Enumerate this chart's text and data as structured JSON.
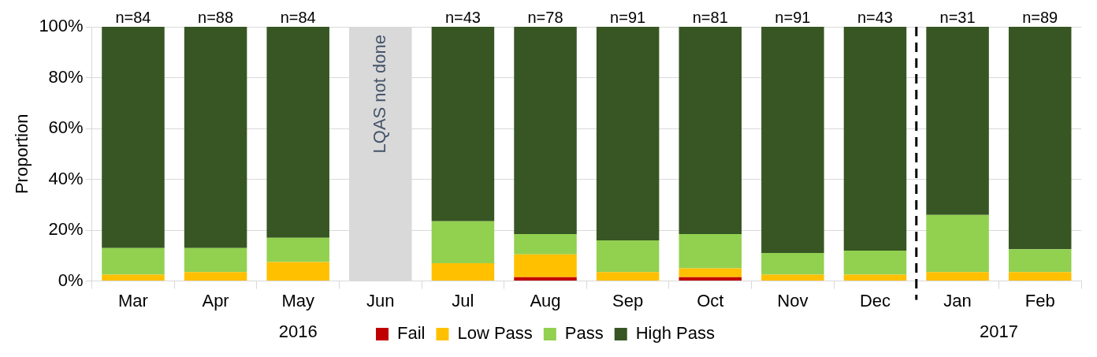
{
  "chart_data": {
    "type": "bar",
    "stacked": true,
    "ylabel": "Proportion",
    "categories": [
      "Mar",
      "Apr",
      "May",
      "Jun",
      "Jul",
      "Aug",
      "Sep",
      "Oct",
      "Nov",
      "Dec",
      "Jan",
      "Feb"
    ],
    "series": [
      {
        "name": "Fail",
        "color": "#c00000",
        "values": [
          0,
          0,
          0,
          null,
          0,
          1.5,
          0,
          1.5,
          0,
          0,
          0,
          0
        ]
      },
      {
        "name": "Low Pass",
        "color": "#ffc000",
        "values": [
          2.5,
          3.5,
          7.5,
          null,
          7,
          9,
          3.5,
          3.5,
          2.5,
          2.5,
          3.5,
          3.5
        ]
      },
      {
        "name": "Pass",
        "color": "#92d050",
        "values": [
          10.5,
          9.5,
          9.5,
          null,
          16.5,
          8,
          12.5,
          13.5,
          8.5,
          9.5,
          22.5,
          9
        ]
      },
      {
        "name": "High Pass",
        "color": "#375623",
        "values": [
          87,
          87,
          83,
          null,
          76.5,
          81.5,
          84,
          81.5,
          89,
          88,
          74,
          87.5
        ]
      }
    ],
    "ylim": [
      0,
      100
    ],
    "yticks": [
      {
        "value": 0,
        "label": "0%"
      },
      {
        "value": 20,
        "label": "20%"
      },
      {
        "value": 40,
        "label": "40%"
      },
      {
        "value": 60,
        "label": "60%"
      },
      {
        "value": 80,
        "label": "80%"
      },
      {
        "value": 100,
        "label": "100%"
      }
    ],
    "grid": "y",
    "legend": "bottom",
    "bands": [
      {
        "axis": "x",
        "from": "Jun",
        "to": "Jun",
        "label": "LQAS not done",
        "color": "#d9d9d9"
      }
    ],
    "ref_lines": [
      {
        "axis": "x",
        "value": "Jan",
        "color": "#000000",
        "line_style": "dashed"
      }
    ],
    "annotations": [
      {
        "text": "n=84",
        "x": "Mar",
        "y": 100
      },
      {
        "text": "n=88",
        "x": "Apr",
        "y": 100
      },
      {
        "text": "n=84",
        "x": "May",
        "y": 100
      },
      {
        "text": "n=43",
        "x": "Jul",
        "y": 100
      },
      {
        "text": "n=78",
        "x": "Aug",
        "y": 100
      },
      {
        "text": "n=91",
        "x": "Sep",
        "y": 100
      },
      {
        "text": "n=81",
        "x": "Oct",
        "y": 100
      },
      {
        "text": "n=91",
        "x": "Nov",
        "y": 100
      },
      {
        "text": "n=43",
        "x": "Dec",
        "y": 100
      },
      {
        "text": "n=31",
        "x": "Jan",
        "y": 100
      },
      {
        "text": "n=89",
        "x": "Feb",
        "y": 100
      },
      "2016",
      "2017"
    ]
  }
}
